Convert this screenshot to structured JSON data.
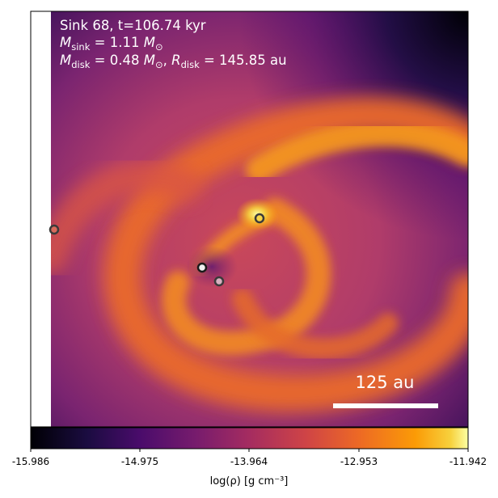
{
  "annotations": {
    "line1": "Sink 68, t=106.74 kyr",
    "m_sink": {
      "symbol": "M",
      "sub": "sink",
      "equals": " = 1.11 ",
      "unit_symbol": "M",
      "unit_sub": "⊙"
    },
    "m_disk": {
      "symbol": "M",
      "sub": "disk",
      "equals": " = 0.48 ",
      "unit_symbol": "M",
      "unit_sub": "⊙"
    },
    "r_disk": {
      "symbol": "R",
      "sub": "disk",
      "equals": " = 145.85 au"
    },
    "scale_bar_label": "125 au"
  },
  "colorbar": {
    "ticks": [
      "-15.986",
      "-14.975",
      "-13.964",
      "-12.953",
      "-11.942"
    ],
    "label": "log(ρ) [g cm⁻³]",
    "colormap": "inferno"
  },
  "sinks": [
    {
      "name": "sink-left-edge",
      "fill": "#d86b5c"
    },
    {
      "name": "sink-upper",
      "fill": "#f7d64a"
    },
    {
      "name": "sink-center",
      "fill": "#f0f0f0"
    },
    {
      "name": "sink-lower",
      "fill": "#d8b0c0"
    }
  ],
  "colors": {
    "background_dark": "#120a28",
    "disk_orange": "#f0842a",
    "text_white": "#ffffff",
    "sink_outline": "#3a3a3a"
  }
}
